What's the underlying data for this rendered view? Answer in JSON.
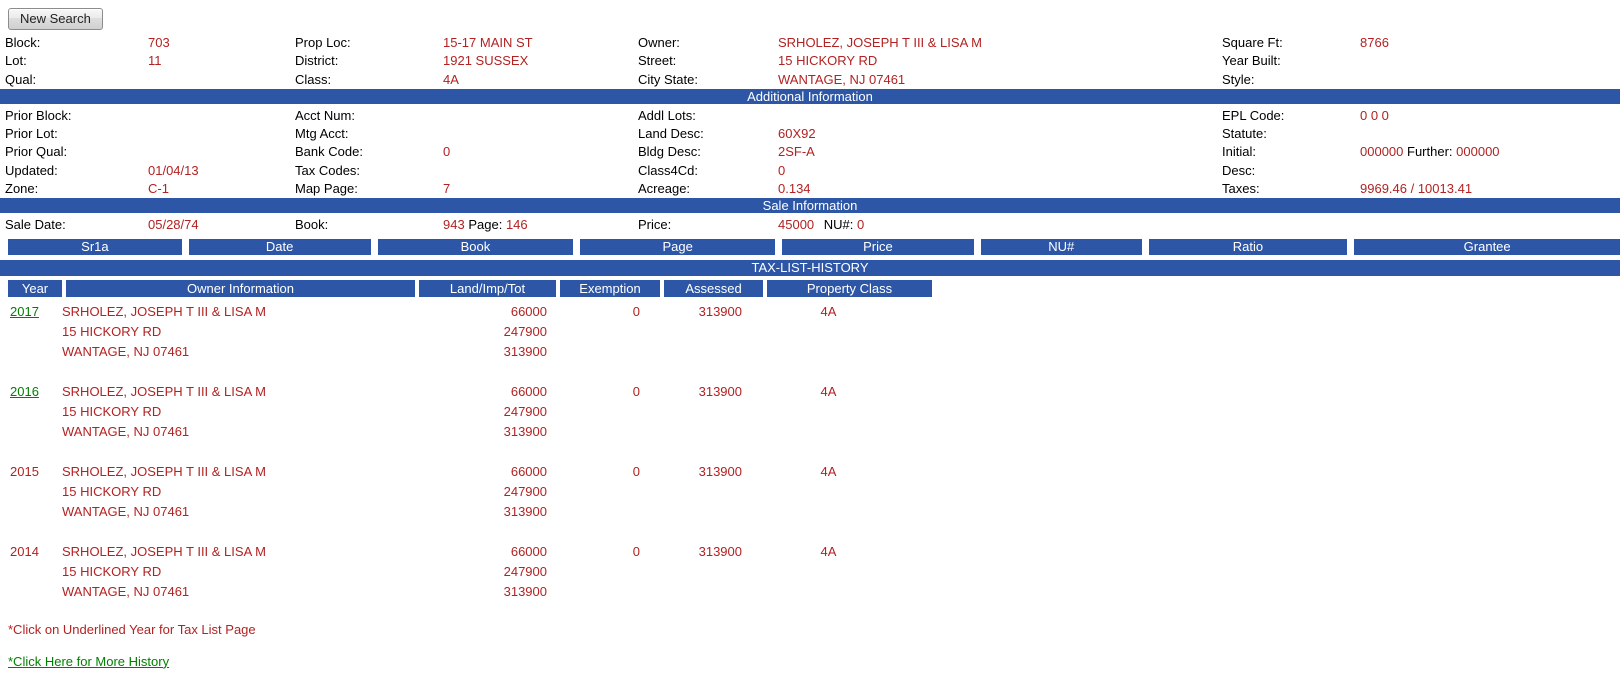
{
  "toolbar": {
    "new_search_label": "New Search"
  },
  "colors": {
    "bar_blue": "#2d57a6",
    "value_red": "#b22222",
    "link_green": "#008000"
  },
  "fields": {
    "block": {
      "label": "Block:",
      "value": "703"
    },
    "lot": {
      "label": "Lot:",
      "value": "11"
    },
    "qual": {
      "label": "Qual:",
      "value": ""
    },
    "prop_loc": {
      "label": "Prop Loc:",
      "value": "15-17 MAIN ST"
    },
    "district": {
      "label": "District:",
      "value": "1921 SUSSEX"
    },
    "class": {
      "label": "Class:",
      "value": "4A"
    },
    "owner": {
      "label": "Owner:",
      "value": "SRHOLEZ, JOSEPH T III & LISA M"
    },
    "street": {
      "label": "Street:",
      "value": "15 HICKORY RD"
    },
    "city_state": {
      "label": "City State:",
      "value": "WANTAGE, NJ 07461"
    },
    "square_ft": {
      "label": "Square Ft:",
      "value": "8766"
    },
    "year_built": {
      "label": "Year Built:",
      "value": ""
    },
    "style": {
      "label": "Style:",
      "value": ""
    },
    "prior_block": {
      "label": "Prior Block:",
      "value": ""
    },
    "prior_lot": {
      "label": "Prior Lot:",
      "value": ""
    },
    "prior_qual": {
      "label": "Prior Qual:",
      "value": ""
    },
    "updated": {
      "label": "Updated:",
      "value": "01/04/13"
    },
    "zone": {
      "label": "Zone:",
      "value": "C-1"
    },
    "acct_num": {
      "label": "Acct Num:",
      "value": ""
    },
    "mtg_acct": {
      "label": "Mtg Acct:",
      "value": ""
    },
    "bank_code": {
      "label": "Bank Code:",
      "value": "0"
    },
    "tax_codes": {
      "label": "Tax Codes:",
      "value": ""
    },
    "map_page": {
      "label": "Map Page:",
      "value": "7"
    },
    "addl_lots": {
      "label": "Addl Lots:",
      "value": ""
    },
    "land_desc": {
      "label": "Land Desc:",
      "value": "60X92"
    },
    "bldg_desc": {
      "label": "Bldg Desc:",
      "value": "2SF-A"
    },
    "class4cd": {
      "label": "Class4Cd:",
      "value": "0"
    },
    "acreage": {
      "label": "Acreage:",
      "value": "0.134"
    },
    "epl_code": {
      "label": "EPL Code:",
      "value": "0 0 0"
    },
    "statute": {
      "label": "Statute:",
      "value": ""
    },
    "initial": {
      "label": "Initial:",
      "value": "000000"
    },
    "further": {
      "label": "Further:",
      "value": "000000"
    },
    "desc": {
      "label": "Desc:",
      "value": ""
    },
    "taxes": {
      "label": "Taxes:",
      "value": "9969.46 / 10013.41"
    },
    "sale_date": {
      "label": "Sale Date:",
      "value": "05/28/74"
    },
    "book": {
      "label": "Book:",
      "value": "943"
    },
    "page": {
      "label": "Page:",
      "value": "146"
    },
    "price": {
      "label": "Price:",
      "value": "45000"
    },
    "nu": {
      "label": "NU#:",
      "value": "0"
    }
  },
  "section_bars": {
    "additional": "Additional Information",
    "sale": "Sale Information",
    "tax_history": "TAX-LIST-HISTORY"
  },
  "sr1a_columns": [
    "Sr1a",
    "Date",
    "Book",
    "Page",
    "Price",
    "NU#",
    "Ratio",
    "Grantee"
  ],
  "history": {
    "columns": [
      "Year",
      "Owner Information",
      "Land/Imp/Tot",
      "Exemption",
      "Assessed",
      "Property Class"
    ],
    "rows": [
      {
        "year": "2017",
        "linked": true,
        "owner": [
          "SRHOLEZ, JOSEPH T III & LISA M",
          "15 HICKORY RD",
          "WANTAGE, NJ 07461"
        ],
        "land_imp_tot": [
          "66000",
          "247900",
          "313900"
        ],
        "exemption": "0",
        "assessed": "313900",
        "property_class": "4A"
      },
      {
        "year": "2016",
        "linked": true,
        "owner": [
          "SRHOLEZ, JOSEPH T III & LISA M",
          "15 HICKORY RD",
          "WANTAGE, NJ 07461"
        ],
        "land_imp_tot": [
          "66000",
          "247900",
          "313900"
        ],
        "exemption": "0",
        "assessed": "313900",
        "property_class": "4A"
      },
      {
        "year": "2015",
        "linked": false,
        "owner": [
          "SRHOLEZ, JOSEPH T III & LISA M",
          "15 HICKORY RD",
          "WANTAGE, NJ 07461"
        ],
        "land_imp_tot": [
          "66000",
          "247900",
          "313900"
        ],
        "exemption": "0",
        "assessed": "313900",
        "property_class": "4A"
      },
      {
        "year": "2014",
        "linked": false,
        "owner": [
          "SRHOLEZ, JOSEPH T III & LISA M",
          "15 HICKORY RD",
          "WANTAGE, NJ 07461"
        ],
        "land_imp_tot": [
          "66000",
          "247900",
          "313900"
        ],
        "exemption": "0",
        "assessed": "313900",
        "property_class": "4A"
      }
    ]
  },
  "footer": {
    "note": "*Click on Underlined Year for Tax List Page",
    "more_history": "*Click Here for More History"
  }
}
